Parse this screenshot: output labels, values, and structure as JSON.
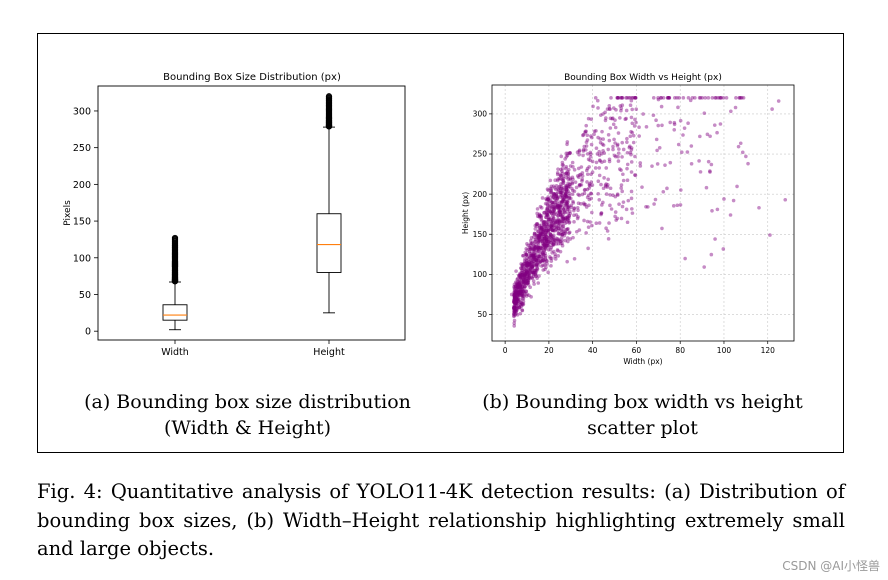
{
  "chart_data": [
    {
      "type": "box",
      "title": "Bounding Box Size Distribution (px)",
      "xlabel": "",
      "ylabel": "Pixels",
      "categories": [
        "Width",
        "Height"
      ],
      "yticks": [
        0,
        50,
        100,
        150,
        200,
        250,
        300
      ],
      "ylim": [
        -12,
        334
      ],
      "boxes": [
        {
          "name": "Width",
          "whisker_low": 2,
          "q1": 15,
          "median": 22,
          "q3": 36,
          "whisker_high": 67,
          "outliers_low": 68,
          "outliers_high": 127
        },
        {
          "name": "Height",
          "whisker_low": 25,
          "q1": 80,
          "median": 118,
          "q3": 160,
          "whisker_high": 278,
          "outliers_low": 279,
          "outliers_high": 320
        }
      ],
      "box_color": "#000000",
      "median_color": "#ff7f0e"
    },
    {
      "type": "scatter",
      "title": "Bounding Box Width vs Height (px)",
      "xlabel": "Width (px)",
      "ylabel": "Height (px)",
      "xticks": [
        0,
        20,
        40,
        60,
        80,
        100,
        120
      ],
      "yticks": [
        50,
        100,
        150,
        200,
        250,
        300
      ],
      "xlim": [
        -6,
        132
      ],
      "ylim": [
        17,
        336
      ],
      "grid": true,
      "point_color": "#800080",
      "note": "dense cluster of ~1500 points rising from (5,30) to ~(100,320); densest below width 30 and height 150"
    }
  ],
  "captions": {
    "a_line1": "(a) Bounding box size distribution",
    "a_line2": "(Width & Height)",
    "b_line1": "(b) Bounding box width vs height",
    "b_line2": "scatter plot"
  },
  "figure_caption": "Fig. 4: Quantitative analysis of YOLO11-4K detection results: (a) Distribution of bounding box sizes, (b) Width–Height relationship highlighting extremely small and large objects.",
  "watermark": "CSDN @AI小怪兽"
}
